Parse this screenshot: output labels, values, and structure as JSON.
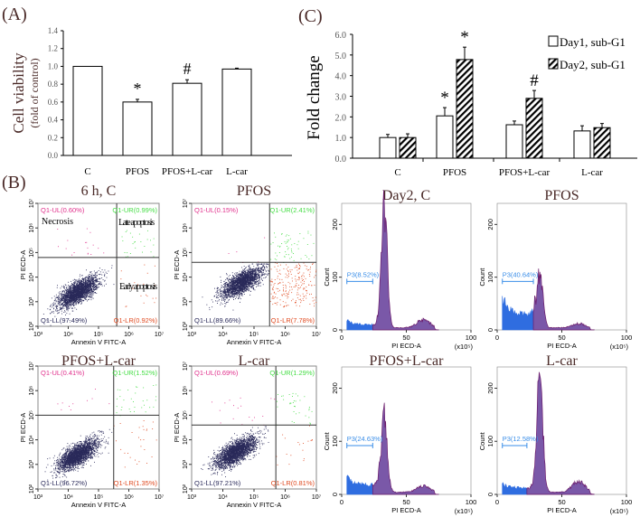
{
  "panel_labels": {
    "a": "(A)",
    "b": "(B)",
    "c": "(C)"
  },
  "colors": {
    "title": "#4a2a28",
    "axis": "#000000",
    "tick": "#555555",
    "ul": "#e0308c",
    "ur": "#44dd44",
    "lr": "#e04a20",
    "ll": "#2a2a5a",
    "subg1": "#2f6de0",
    "cell_cycle": "#7a58a8",
    "gate": "#3a8ee8"
  },
  "chart_data": [
    {
      "id": "A",
      "type": "bar",
      "ylabel": "Cell viability",
      "ylabel2": "(fold of control)",
      "categories": [
        "C",
        "PFOS",
        "PFOS+L-car",
        "L-car"
      ],
      "values": [
        1.0,
        0.6,
        0.81,
        0.97
      ],
      "errors": [
        0.0,
        0.03,
        0.04,
        0.01
      ],
      "annotations": [
        "",
        "*",
        "#",
        ""
      ],
      "ylim": [
        0,
        1.4
      ],
      "yticks": [
        "0.0",
        "0.2",
        "0.4",
        "0.6",
        "0.8",
        "1.0",
        "1.2",
        "1.4"
      ],
      "grid": false
    },
    {
      "id": "C",
      "type": "bar",
      "ylabel": "Fold change",
      "categories": [
        "C",
        "PFOS",
        "PFOS+L-car",
        "L-car"
      ],
      "series": [
        {
          "name": "Day1, sub-G1",
          "values": [
            1.0,
            2.05,
            1.62,
            1.32
          ],
          "errors": [
            0.15,
            0.4,
            0.18,
            0.25
          ],
          "annotations": [
            "",
            "*",
            "",
            ""
          ],
          "fill": "white"
        },
        {
          "name": "Day2, sub-G1",
          "values": [
            1.0,
            4.78,
            2.9,
            1.48
          ],
          "errors": [
            0.18,
            0.6,
            0.38,
            0.2
          ],
          "annotations": [
            "",
            "*",
            "#",
            ""
          ],
          "fill": "hatched"
        }
      ],
      "ylim": [
        0,
        6
      ],
      "yticks": [
        "0.0",
        "1.0",
        "2.0",
        "3.0",
        "4.0",
        "5.0",
        "6.0"
      ],
      "legend": "top-right",
      "grid": false
    },
    {
      "id": "B-flow",
      "type": "scatter",
      "xlabel": "Annexin V FITC-A",
      "ylabel": "PI ECD-A",
      "x_range_log10": [
        3,
        7
      ],
      "y_range_log10": [
        2,
        7
      ],
      "xticks": [
        "10³",
        "10⁴",
        "10⁵",
        "10⁶",
        "10⁷"
      ],
      "yticks": [
        "10²",
        "10³",
        "10⁴",
        "10⁵",
        "10⁶",
        "10⁷"
      ],
      "quadrant_annotations": {
        "ul": "Necrosis",
        "ur": "Late apoptosis",
        "lr": "Early apoptosis"
      },
      "plots": [
        {
          "title": "6 h, C",
          "ul": "Q1-UL(0.60%)",
          "ur": "Q1-UR(0.99%)",
          "ll": "Q1-LL(97.49%)",
          "lr": "Q1-LR(0.92%)",
          "x_gate_log10": 5.6,
          "y_gate_log10": 4.8,
          "cluster_log10": [
            4.3,
            3.4
          ],
          "pct": [
            0.6,
            0.99,
            97.49,
            0.92
          ],
          "show_annotations": true
        },
        {
          "title": "PFOS",
          "ul": "Q1-UL(0.15%)",
          "ur": "Q1-UR(2.41%)",
          "ll": "Q1-LL(89.66%)",
          "lr": "Q1-LR(7.78%)",
          "x_gate_log10": 5.5,
          "y_gate_log10": 4.6,
          "cluster_log10": [
            4.6,
            3.8
          ],
          "pct": [
            0.15,
            2.41,
            89.66,
            7.78
          ],
          "show_annotations": false
        },
        {
          "title": "PFOS+L-car",
          "ul": "Q1-UL(0.41%)",
          "ur": "Q1-UR(1.52%)",
          "ll": "Q1-LL(96.72%)",
          "lr": "Q1-LR(1.35%)",
          "x_gate_log10": 5.5,
          "y_gate_log10": 5.0,
          "cluster_log10": [
            4.3,
            3.4
          ],
          "pct": [
            0.41,
            1.52,
            96.72,
            1.35
          ],
          "show_annotations": false
        },
        {
          "title": "L-car",
          "ul": "Q1-UL(0.69%)",
          "ur": "Q1-UR(1.29%)",
          "ll": "Q1-LL(97.21%)",
          "lr": "Q1-LR(0.81%)",
          "x_gate_log10": 5.7,
          "y_gate_log10": 4.6,
          "cluster_log10": [
            4.4,
            3.5
          ],
          "pct": [
            0.69,
            1.29,
            97.21,
            0.81
          ],
          "show_annotations": false
        }
      ]
    },
    {
      "id": "B-cellcycle",
      "type": "area",
      "xlabel": "PI ECD-A",
      "xunit": "(x10⁵)",
      "ylabel": "Count",
      "xlim": [
        0,
        100
      ],
      "ylim": [
        0,
        240
      ],
      "xticks": [
        "0",
        "50",
        "100"
      ],
      "yticks": [
        "0",
        "100",
        "200"
      ],
      "plots": [
        {
          "title": "Day2, C",
          "gate_label": "P3(8.52%)",
          "gate_range": [
            4,
            24
          ],
          "g1_peak": 230,
          "subg1_level": 10,
          "g2_level": 15
        },
        {
          "title": "PFOS",
          "gate_label": "P3(40.64%)",
          "gate_range": [
            4,
            28
          ],
          "g1_peak": 110,
          "subg1_level": 30,
          "g2_level": 8
        },
        {
          "title": "PFOS+L-car",
          "gate_label": "P3(24.63%)",
          "gate_range": [
            4,
            24
          ],
          "g1_peak": 148,
          "subg1_level": 18,
          "g2_level": 12
        },
        {
          "title": "L-car",
          "gate_label": "P3(12.58%)",
          "gate_range": [
            4,
            23
          ],
          "g1_peak": 220,
          "subg1_level": 12,
          "g2_level": 20
        }
      ]
    }
  ]
}
